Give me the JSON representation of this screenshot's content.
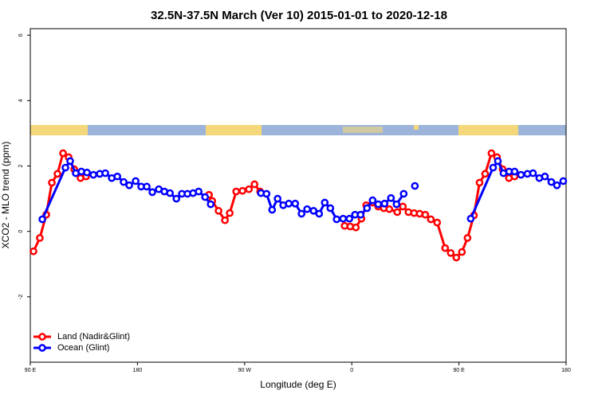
{
  "chart_data": {
    "type": "line",
    "title": "32.5N-37.5N March (Ver 10)   2015-01-01 to 2020-12-18",
    "xlabel": "Longitude (deg E)",
    "ylabel": "XCO2 - MLO trend (ppm)",
    "xlim": [
      90,
      540
    ],
    "xticks": [
      {
        "value": 90,
        "label": "90 E"
      },
      180,
      {
        "value": 270,
        "label": "90 W"
      },
      {
        "value": 360,
        "label": "0"
      },
      {
        "value": 450,
        "label": "90 E"
      },
      {
        "value": 540,
        "label": "180"
      }
    ],
    "ylim": [
      -4,
      6.2
    ],
    "yticks": [
      -2,
      0,
      2,
      4,
      6
    ],
    "legend": "bottom-left",
    "series": [
      {
        "name": "Land (Nadir&Glint)",
        "color": "#ff0000",
        "x": [
          92.7,
          98.0,
          103.4,
          108.1,
          112.8,
          117.5,
          122.2,
          126.9,
          132.2,
          136.9,
          null,
          240.1,
          242.8,
          248.1,
          253.5,
          257.5,
          262.9,
          268.2,
          273.6,
          278.3,
          283.0,
          null,
          354.0,
          358.7,
          363.4,
          368.1,
          372.1,
          377.5,
          382.2,
          386.9,
          391.5,
          398.2,
          402.9,
          407.6,
          412.3,
          417.0,
          421.7,
          426.4,
          431.7,
          438.4,
          443.1,
          447.8,
          452.5,
          457.2,
          462.6,
          467.3,
          472.0,
          477.3,
          482.0,
          486.7,
          492.0,
          496.7
        ],
        "values": [
          -0.61,
          -0.2,
          0.51,
          1.49,
          1.76,
          2.39,
          2.27,
          1.9,
          1.63,
          1.68,
          null,
          1.12,
          0.93,
          0.63,
          0.34,
          0.56,
          1.22,
          1.24,
          1.29,
          1.44,
          1.22,
          null,
          0.17,
          0.15,
          0.12,
          0.39,
          0.8,
          0.88,
          0.76,
          0.71,
          0.68,
          0.59,
          0.76,
          0.59,
          0.56,
          0.54,
          0.51,
          0.37,
          0.27,
          -0.51,
          -0.66,
          -0.8,
          -0.63,
          -0.2,
          0.49,
          1.49,
          1.76,
          2.39,
          2.27,
          1.9,
          1.63,
          1.68
        ]
      },
      {
        "name": "Ocean (Glint)",
        "color": "#0000ff",
        "x": [
          100.1,
          119.5,
          123.5,
          128.2,
          132.9,
          137.6,
          143.0,
          148.3,
          153.0,
          158.4,
          163.1,
          168.4,
          173.1,
          178.5,
          183.1,
          187.8,
          192.5,
          197.9,
          202.6,
          207.3,
          212.7,
          217.3,
          222.0,
          226.7,
          231.4,
          236.8,
          241.5,
          null,
          283.7,
          288.4,
          293.1,
          297.7,
          302.4,
          307.1,
          312.5,
          317.8,
          322.5,
          327.9,
          332.6,
          337.3,
          342.0,
          347.3,
          352.7,
          358.0,
          362.7,
          367.4,
          372.8,
          377.5,
          382.2,
          387.5,
          392.9,
          397.6,
          403.6,
          null,
          413.0,
          null,
          459.9,
          478.7,
          482.7,
          487.4,
          492.1,
          496.8,
          502.1,
          507.5,
          512.2,
          517.5,
          522.2,
          527.6,
          532.3,
          537.6
        ],
        "values": [
          0.37,
          1.95,
          2.15,
          1.78,
          1.83,
          1.8,
          1.73,
          1.76,
          1.78,
          1.63,
          1.68,
          1.51,
          1.41,
          1.54,
          1.37,
          1.37,
          1.2,
          1.29,
          1.22,
          1.17,
          1.0,
          1.15,
          1.15,
          1.17,
          1.22,
          1.05,
          0.83,
          null,
          1.17,
          1.15,
          0.66,
          1.0,
          0.8,
          0.85,
          0.85,
          0.54,
          0.68,
          0.63,
          0.54,
          0.88,
          0.71,
          0.37,
          0.39,
          0.39,
          0.51,
          0.51,
          0.71,
          0.95,
          0.83,
          0.85,
          1.02,
          0.83,
          1.15,
          null,
          1.39,
          null,
          0.39,
          1.95,
          2.15,
          1.78,
          1.83,
          1.83,
          1.73,
          1.76,
          1.78,
          1.63,
          1.68,
          1.51,
          1.41,
          1.54
        ]
      }
    ]
  }
}
